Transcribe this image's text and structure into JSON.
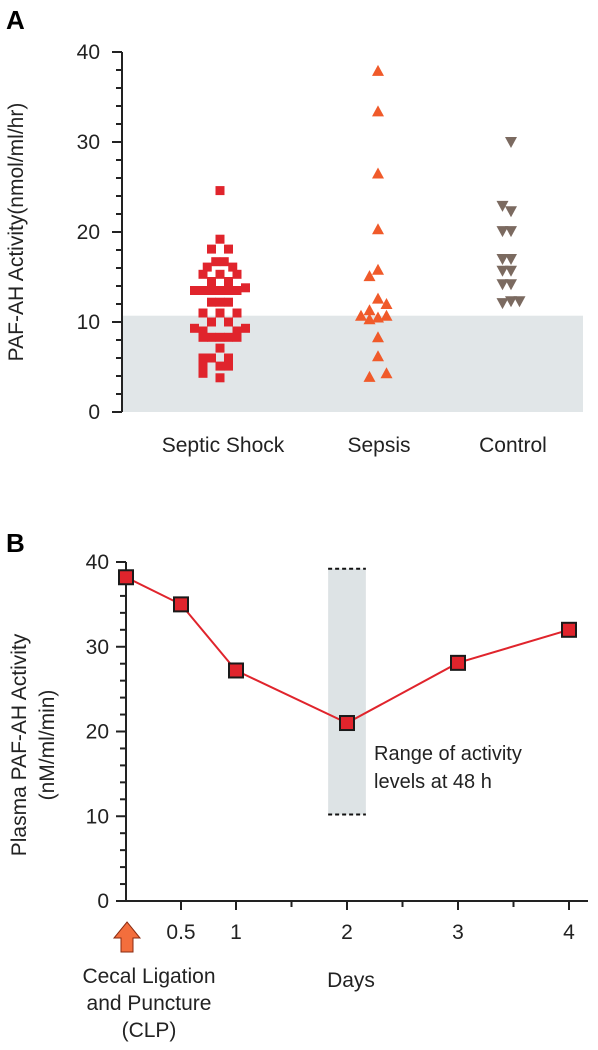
{
  "chart_data": [
    {
      "panel": "A",
      "type": "scatter",
      "title": "",
      "ylabel": "PAF-AH Activity(nmol/ml/hr)",
      "xlabel": "",
      "ylim": [
        0,
        40
      ],
      "yticks": [
        0,
        10,
        20,
        30,
        40
      ],
      "grid": false,
      "shaded_band": {
        "y_from": 0,
        "y_to": 10.7,
        "color": "#e1e6e8"
      },
      "categories": [
        "Septic Shock",
        "Sepsis",
        "Control"
      ],
      "series": [
        {
          "category": "Septic Shock",
          "marker": "square",
          "color": "#e0242c",
          "points": [
            {
              "x": 0,
              "y": 24.6
            },
            {
              "x": 0,
              "y": 19.2
            },
            {
              "x": -1,
              "y": 18.1
            },
            {
              "x": 1,
              "y": 18.1
            },
            {
              "x": -0.5,
              "y": 16.7
            },
            {
              "x": 0.5,
              "y": 16.7
            },
            {
              "x": -1.5,
              "y": 16.1
            },
            {
              "x": 1.5,
              "y": 16.1
            },
            {
              "x": -2,
              "y": 15.3
            },
            {
              "x": 0,
              "y": 15.3
            },
            {
              "x": 2,
              "y": 15.3
            },
            {
              "x": -1,
              "y": 14.5
            },
            {
              "x": 1,
              "y": 14.5
            },
            {
              "x": -3,
              "y": 13.5
            },
            {
              "x": -2,
              "y": 13.5
            },
            {
              "x": -1,
              "y": 13.5
            },
            {
              "x": 0,
              "y": 13.5
            },
            {
              "x": 1,
              "y": 13.5
            },
            {
              "x": 2,
              "y": 13.5
            },
            {
              "x": 3,
              "y": 13.8
            },
            {
              "x": -1,
              "y": 12.2
            },
            {
              "x": 0,
              "y": 12.2
            },
            {
              "x": 1,
              "y": 12.2
            },
            {
              "x": -2,
              "y": 11.0
            },
            {
              "x": 0,
              "y": 11.0
            },
            {
              "x": 2,
              "y": 11.0
            },
            {
              "x": -1,
              "y": 10.0
            },
            {
              "x": 1,
              "y": 10.0
            },
            {
              "x": -3,
              "y": 9.3
            },
            {
              "x": -2,
              "y": 9.0
            },
            {
              "x": 2,
              "y": 9.0
            },
            {
              "x": 3,
              "y": 9.3
            },
            {
              "x": -2,
              "y": 8.3
            },
            {
              "x": -1,
              "y": 8.3
            },
            {
              "x": 0,
              "y": 8.3
            },
            {
              "x": 1,
              "y": 8.3
            },
            {
              "x": 2,
              "y": 8.3
            },
            {
              "x": 0,
              "y": 7.1
            },
            {
              "x": -2,
              "y": 6.0
            },
            {
              "x": -1,
              "y": 6.0
            },
            {
              "x": 1,
              "y": 6.0
            },
            {
              "x": -2,
              "y": 5.1
            },
            {
              "x": 0,
              "y": 5.1
            },
            {
              "x": 1,
              "y": 5.1
            },
            {
              "x": -2,
              "y": 4.3
            },
            {
              "x": 0,
              "y": 3.8
            }
          ]
        },
        {
          "category": "Sepsis",
          "marker": "triangle-up",
          "color": "#f05a2a",
          "points": [
            {
              "x": 0,
              "y": 37.9
            },
            {
              "x": 0,
              "y": 33.4
            },
            {
              "x": 0,
              "y": 26.5
            },
            {
              "x": 0,
              "y": 20.3
            },
            {
              "x": 0,
              "y": 15.8
            },
            {
              "x": -1,
              "y": 15.1
            },
            {
              "x": 0,
              "y": 12.6
            },
            {
              "x": 1,
              "y": 12.0
            },
            {
              "x": -1,
              "y": 11.3
            },
            {
              "x": -2,
              "y": 10.7
            },
            {
              "x": -1,
              "y": 10.3
            },
            {
              "x": 0,
              "y": 10.5
            },
            {
              "x": 1,
              "y": 10.7
            },
            {
              "x": 0,
              "y": 8.3
            },
            {
              "x": 0,
              "y": 6.2
            },
            {
              "x": -1,
              "y": 3.9
            },
            {
              "x": 1,
              "y": 4.3
            }
          ]
        },
        {
          "category": "Control",
          "marker": "triangle-down",
          "color": "#7b6a60",
          "points": [
            {
              "x": 0,
              "y": 30.0
            },
            {
              "x": -1,
              "y": 22.9
            },
            {
              "x": 0,
              "y": 22.3
            },
            {
              "x": -1,
              "y": 20.1
            },
            {
              "x": 0,
              "y": 20.1
            },
            {
              "x": -1,
              "y": 17.0
            },
            {
              "x": 0,
              "y": 17.0
            },
            {
              "x": -1,
              "y": 15.7
            },
            {
              "x": 0,
              "y": 15.7
            },
            {
              "x": -1,
              "y": 14.2
            },
            {
              "x": 0,
              "y": 14.2
            },
            {
              "x": -1,
              "y": 12.1
            },
            {
              "x": 0,
              "y": 12.3
            },
            {
              "x": 1,
              "y": 12.3
            }
          ]
        }
      ]
    },
    {
      "panel": "B",
      "type": "line",
      "title": "",
      "ylabel": "Plasma PAF-AH Activity",
      "ylabel2": "(nM/ml/min)",
      "xlabel": "Days",
      "ylim": [
        0,
        40
      ],
      "yticks": [
        0,
        10,
        20,
        30,
        40
      ],
      "xlim": [
        0,
        4.2
      ],
      "xticks": [
        0.5,
        1,
        2,
        3,
        4
      ],
      "xtick_labels": [
        "0.5",
        "1",
        "2",
        "3",
        "4"
      ],
      "grid": false,
      "series": [
        {
          "name": "",
          "color": "#e0242c",
          "marker": "square",
          "x": [
            0,
            0.5,
            1,
            2,
            3,
            4
          ],
          "y": [
            38.2,
            35.0,
            27.2,
            21.0,
            28.1,
            32.0
          ]
        }
      ],
      "range_band": {
        "x_from": 1.83,
        "x_to": 2.17,
        "y_from": 10.2,
        "y_to": 39.2,
        "color": "#dde3e5"
      },
      "annotation_lines": [
        "Range of activity",
        "levels at 48 h"
      ],
      "clp_label_lines": [
        "Cecal Ligation",
        "and Puncture",
        "(CLP)"
      ],
      "clp_arrow_color": "#f36e3d"
    }
  ]
}
